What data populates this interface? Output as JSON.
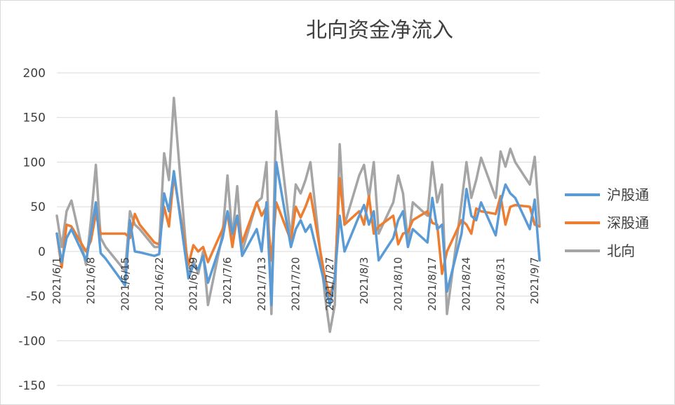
{
  "chart_data": {
    "type": "line",
    "title": "北向资金净流入",
    "ylim": [
      -150,
      200
    ],
    "yticks": [
      200,
      150,
      100,
      50,
      0,
      -50,
      -100,
      -150
    ],
    "xlim": [
      "2021-06-01",
      "2021-09-08"
    ],
    "xtick_labels": [
      "2021/6/1",
      "2021/6/8",
      "2021/6/15",
      "2021/6/22",
      "2021/6/29",
      "2021/7/6",
      "2021/7/13",
      "2021/7/20",
      "2021/7/27",
      "2021/8/3",
      "2021/8/10",
      "2021/8/17",
      "2021/8/24",
      "2021/8/31",
      "2021/9/7"
    ],
    "xtick_dates": [
      "2021-06-01",
      "2021-06-08",
      "2021-06-15",
      "2021-06-22",
      "2021-06-29",
      "2021-07-06",
      "2021-07-13",
      "2021-07-20",
      "2021-07-27",
      "2021-08-03",
      "2021-08-10",
      "2021-08-17",
      "2021-08-24",
      "2021-08-31",
      "2021-09-07"
    ],
    "grid": true,
    "legend_position": "right",
    "series": [
      {
        "name": "沪股通",
        "color": "#5B9BD5",
        "points": [
          [
            "2021-06-01",
            20
          ],
          [
            "2021-06-02",
            -12
          ],
          [
            "2021-06-03",
            15
          ],
          [
            "2021-06-04",
            25
          ],
          [
            "2021-06-07",
            -10
          ],
          [
            "2021-06-08",
            20
          ],
          [
            "2021-06-09",
            55
          ],
          [
            "2021-06-10",
            -2
          ],
          [
            "2021-06-11",
            -8
          ],
          [
            "2021-06-15",
            -38
          ],
          [
            "2021-06-16",
            35
          ],
          [
            "2021-06-17",
            0
          ],
          [
            "2021-06-18",
            -1
          ],
          [
            "2021-06-21",
            -5
          ],
          [
            "2021-06-22",
            -3
          ],
          [
            "2021-06-23",
            65
          ],
          [
            "2021-06-24",
            45
          ],
          [
            "2021-06-25",
            90
          ],
          [
            "2021-06-28",
            -30
          ],
          [
            "2021-06-29",
            -15
          ],
          [
            "2021-06-30",
            -20
          ],
          [
            "2021-07-01",
            -5
          ],
          [
            "2021-07-02",
            -35
          ],
          [
            "2021-07-05",
            15
          ],
          [
            "2021-07-06",
            45
          ],
          [
            "2021-07-07",
            20
          ],
          [
            "2021-07-08",
            40
          ],
          [
            "2021-07-09",
            -5
          ],
          [
            "2021-07-12",
            25
          ],
          [
            "2021-07-13",
            0
          ],
          [
            "2021-07-14",
            55
          ],
          [
            "2021-07-15",
            -60
          ],
          [
            "2021-07-16",
            100
          ],
          [
            "2021-07-19",
            5
          ],
          [
            "2021-07-20",
            25
          ],
          [
            "2021-07-21",
            35
          ],
          [
            "2021-07-22",
            22
          ],
          [
            "2021-07-23",
            30
          ],
          [
            "2021-07-26",
            -38
          ],
          [
            "2021-07-27",
            -60
          ],
          [
            "2021-07-28",
            -30
          ],
          [
            "2021-07-29",
            40
          ],
          [
            "2021-07-30",
            0
          ],
          [
            "2021-08-02",
            40
          ],
          [
            "2021-08-03",
            52
          ],
          [
            "2021-08-04",
            30
          ],
          [
            "2021-08-05",
            45
          ],
          [
            "2021-08-06",
            -10
          ],
          [
            "2021-08-09",
            15
          ],
          [
            "2021-08-10",
            35
          ],
          [
            "2021-08-11",
            45
          ],
          [
            "2021-08-12",
            5
          ],
          [
            "2021-08-13",
            25
          ],
          [
            "2021-08-16",
            10
          ],
          [
            "2021-08-17",
            60
          ],
          [
            "2021-08-18",
            25
          ],
          [
            "2021-08-19",
            30
          ],
          [
            "2021-08-20",
            -45
          ],
          [
            "2021-08-23",
            20
          ],
          [
            "2021-08-24",
            70
          ],
          [
            "2021-08-25",
            40
          ],
          [
            "2021-08-26",
            35
          ],
          [
            "2021-08-27",
            55
          ],
          [
            "2021-08-30",
            18
          ],
          [
            "2021-08-31",
            55
          ],
          [
            "2021-09-01",
            75
          ],
          [
            "2021-09-02",
            65
          ],
          [
            "2021-09-03",
            60
          ],
          [
            "2021-09-06",
            25
          ],
          [
            "2021-09-07",
            58
          ],
          [
            "2021-09-08",
            -10
          ]
        ]
      },
      {
        "name": "深股通",
        "color": "#ED7D31",
        "points": [
          [
            "2021-06-01",
            20
          ],
          [
            "2021-06-02",
            -18
          ],
          [
            "2021-06-03",
            30
          ],
          [
            "2021-06-04",
            28
          ],
          [
            "2021-06-07",
            0
          ],
          [
            "2021-06-08",
            12
          ],
          [
            "2021-06-09",
            42
          ],
          [
            "2021-06-10",
            20
          ],
          [
            "2021-06-11",
            20
          ],
          [
            "2021-06-15",
            20
          ],
          [
            "2021-06-16",
            15
          ],
          [
            "2021-06-17",
            42
          ],
          [
            "2021-06-18",
            30
          ],
          [
            "2021-06-21",
            10
          ],
          [
            "2021-06-22",
            8
          ],
          [
            "2021-06-23",
            50
          ],
          [
            "2021-06-24",
            28
          ],
          [
            "2021-06-25",
            85
          ],
          [
            "2021-06-28",
            -15
          ],
          [
            "2021-06-29",
            7
          ],
          [
            "2021-06-30",
            0
          ],
          [
            "2021-07-01",
            5
          ],
          [
            "2021-07-02",
            -12
          ],
          [
            "2021-07-05",
            25
          ],
          [
            "2021-07-06",
            43
          ],
          [
            "2021-07-07",
            5
          ],
          [
            "2021-07-08",
            40
          ],
          [
            "2021-07-09",
            10
          ],
          [
            "2021-07-12",
            55
          ],
          [
            "2021-07-13",
            40
          ],
          [
            "2021-07-14",
            50
          ],
          [
            "2021-07-15",
            -10
          ],
          [
            "2021-07-16",
            55
          ],
          [
            "2021-07-19",
            12
          ],
          [
            "2021-07-20",
            50
          ],
          [
            "2021-07-21",
            38
          ],
          [
            "2021-07-22",
            50
          ],
          [
            "2021-07-23",
            65
          ],
          [
            "2021-07-26",
            -30
          ],
          [
            "2021-07-27",
            -50
          ],
          [
            "2021-07-28",
            -30
          ],
          [
            "2021-07-29",
            82
          ],
          [
            "2021-07-30",
            30
          ],
          [
            "2021-08-02",
            45
          ],
          [
            "2021-08-03",
            30
          ],
          [
            "2021-08-04",
            62
          ],
          [
            "2021-08-05",
            20
          ],
          [
            "2021-08-06",
            28
          ],
          [
            "2021-08-09",
            40
          ],
          [
            "2021-08-10",
            8
          ],
          [
            "2021-08-11",
            20
          ],
          [
            "2021-08-12",
            22
          ],
          [
            "2021-08-13",
            35
          ],
          [
            "2021-08-16",
            45
          ],
          [
            "2021-08-17",
            32
          ],
          [
            "2021-08-18",
            30
          ],
          [
            "2021-08-19",
            -25
          ],
          [
            "2021-08-20",
            0
          ],
          [
            "2021-08-23",
            35
          ],
          [
            "2021-08-24",
            30
          ],
          [
            "2021-08-25",
            20
          ],
          [
            "2021-08-26",
            48
          ],
          [
            "2021-08-27",
            45
          ],
          [
            "2021-08-30",
            42
          ],
          [
            "2021-08-31",
            62
          ],
          [
            "2021-09-01",
            30
          ],
          [
            "2021-09-02",
            50
          ],
          [
            "2021-09-03",
            52
          ],
          [
            "2021-09-06",
            50
          ],
          [
            "2021-09-07",
            30
          ],
          [
            "2021-09-08",
            28
          ]
        ]
      },
      {
        "name": "北向",
        "color": "#A5A5A5",
        "points": [
          [
            "2021-06-01",
            40
          ],
          [
            "2021-06-02",
            5
          ],
          [
            "2021-06-03",
            45
          ],
          [
            "2021-06-04",
            57
          ],
          [
            "2021-06-07",
            -15
          ],
          [
            "2021-06-08",
            35
          ],
          [
            "2021-06-09",
            97
          ],
          [
            "2021-06-10",
            15
          ],
          [
            "2021-06-11",
            5
          ],
          [
            "2021-06-15",
            -22
          ],
          [
            "2021-06-16",
            45
          ],
          [
            "2021-06-17",
            30
          ],
          [
            "2021-06-18",
            25
          ],
          [
            "2021-06-21",
            5
          ],
          [
            "2021-06-22",
            5
          ],
          [
            "2021-06-23",
            110
          ],
          [
            "2021-06-24",
            80
          ],
          [
            "2021-06-25",
            172
          ],
          [
            "2021-06-28",
            -30
          ],
          [
            "2021-06-29",
            -10
          ],
          [
            "2021-06-30",
            -25
          ],
          [
            "2021-07-01",
            0
          ],
          [
            "2021-07-02",
            -60
          ],
          [
            "2021-07-05",
            20
          ],
          [
            "2021-07-06",
            85
          ],
          [
            "2021-07-07",
            15
          ],
          [
            "2021-07-08",
            73
          ],
          [
            "2021-07-09",
            0
          ],
          [
            "2021-07-12",
            55
          ],
          [
            "2021-07-13",
            60
          ],
          [
            "2021-07-14",
            100
          ],
          [
            "2021-07-15",
            -70
          ],
          [
            "2021-07-16",
            157
          ],
          [
            "2021-07-19",
            15
          ],
          [
            "2021-07-20",
            75
          ],
          [
            "2021-07-21",
            65
          ],
          [
            "2021-07-22",
            80
          ],
          [
            "2021-07-23",
            100
          ],
          [
            "2021-07-26",
            -50
          ],
          [
            "2021-07-27",
            -90
          ],
          [
            "2021-07-28",
            -60
          ],
          [
            "2021-07-29",
            120
          ],
          [
            "2021-07-30",
            30
          ],
          [
            "2021-08-02",
            85
          ],
          [
            "2021-08-03",
            97
          ],
          [
            "2021-08-04",
            60
          ],
          [
            "2021-08-05",
            100
          ],
          [
            "2021-08-06",
            20
          ],
          [
            "2021-08-09",
            55
          ],
          [
            "2021-08-10",
            85
          ],
          [
            "2021-08-11",
            65
          ],
          [
            "2021-08-12",
            10
          ],
          [
            "2021-08-13",
            55
          ],
          [
            "2021-08-16",
            40
          ],
          [
            "2021-08-17",
            100
          ],
          [
            "2021-08-18",
            55
          ],
          [
            "2021-08-19",
            75
          ],
          [
            "2021-08-20",
            -70
          ],
          [
            "2021-08-23",
            55
          ],
          [
            "2021-08-24",
            100
          ],
          [
            "2021-08-25",
            60
          ],
          [
            "2021-08-26",
            80
          ],
          [
            "2021-08-27",
            105
          ],
          [
            "2021-08-30",
            60
          ],
          [
            "2021-08-31",
            112
          ],
          [
            "2021-09-01",
            95
          ],
          [
            "2021-09-02",
            115
          ],
          [
            "2021-09-03",
            100
          ],
          [
            "2021-09-06",
            75
          ],
          [
            "2021-09-07",
            106
          ],
          [
            "2021-09-08",
            30
          ]
        ]
      }
    ]
  }
}
